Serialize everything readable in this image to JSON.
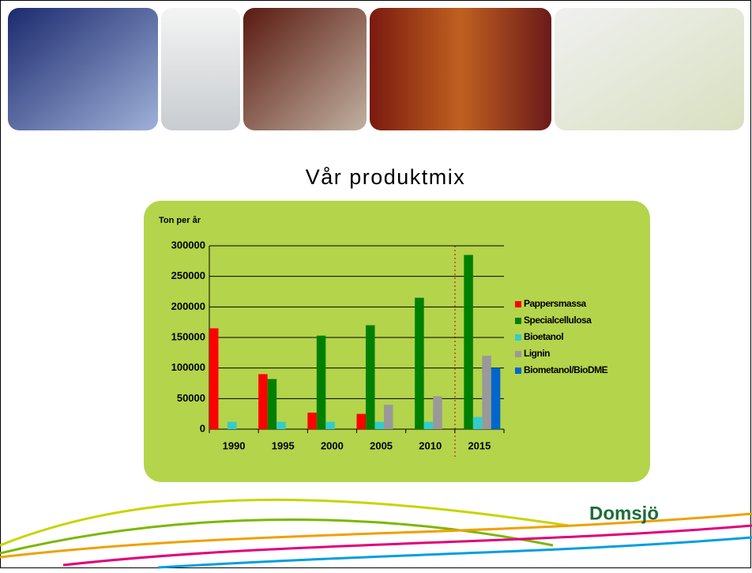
{
  "chart_data": {
    "type": "bar",
    "title": "Vår produktmix",
    "y_label": "Ton per år",
    "categories": [
      "1990",
      "1995",
      "2000",
      "2005",
      "2010",
      "2015"
    ],
    "series": [
      {
        "name": "Pappersmassa",
        "color": "#ff0000",
        "values": [
          165000,
          90000,
          27000,
          25000,
          0,
          0
        ]
      },
      {
        "name": "Specialcellulosa",
        "color": "#008000",
        "values": [
          0,
          82000,
          153000,
          170000,
          215000,
          285000
        ]
      },
      {
        "name": "Bioetanol",
        "color": "#33cccc",
        "values": [
          12000,
          12000,
          12000,
          12000,
          12000,
          20000
        ]
      },
      {
        "name": "Lignin",
        "color": "#999999",
        "values": [
          0,
          0,
          0,
          40000,
          54000,
          120000
        ]
      },
      {
        "name": "Biometanol/BioDME",
        "color": "#0066cc",
        "values": [
          0,
          0,
          0,
          0,
          0,
          100000
        ]
      }
    ],
    "ylim": [
      0,
      300000
    ],
    "yticks": [
      0,
      50000,
      100000,
      150000,
      200000,
      250000,
      300000
    ],
    "grid": true
  },
  "logo_text": "Domsjö"
}
